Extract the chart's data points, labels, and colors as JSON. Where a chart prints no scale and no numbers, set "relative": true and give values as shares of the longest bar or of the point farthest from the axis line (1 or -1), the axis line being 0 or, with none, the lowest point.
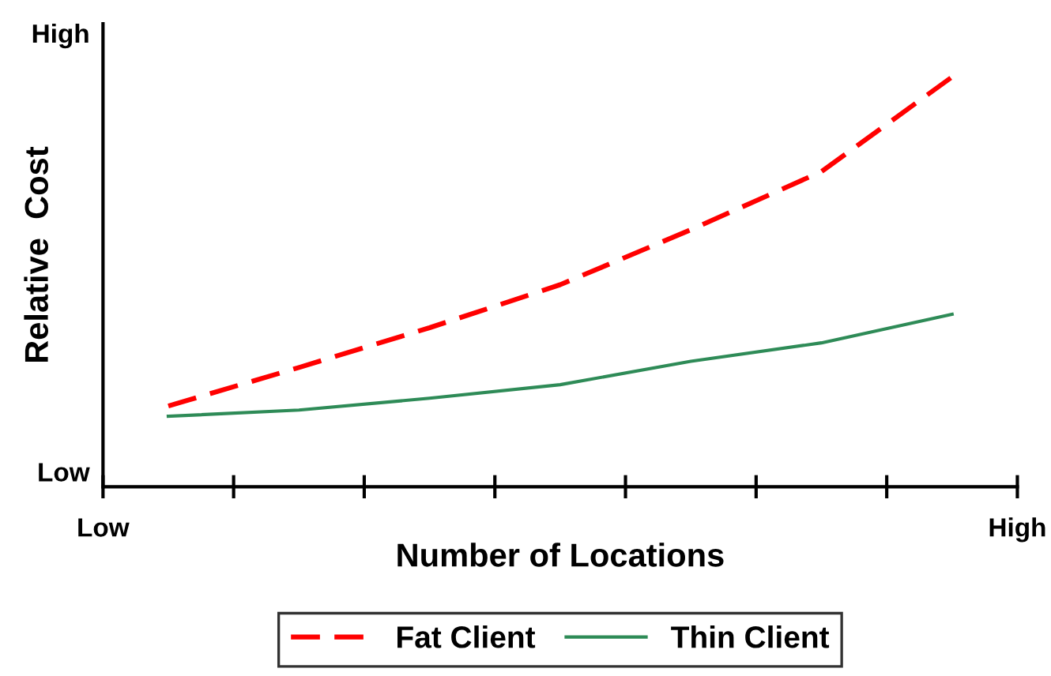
{
  "chart_data": {
    "type": "line",
    "relative": true,
    "xlabel": "Number of Locations",
    "ylabel": "Relative  Cost",
    "categories": [
      null,
      null,
      null,
      null,
      null,
      null,
      null
    ],
    "annotations": [
      "High",
      "Low",
      "Low",
      "High"
    ],
    "series": [
      {
        "name": "Fat Client",
        "color": "#ff0000",
        "line_style": "dashed",
        "values": [
          0.197,
          0.291,
          0.388,
          0.493,
          0.627,
          0.769,
          1
        ]
      },
      {
        "name": "Thin Client",
        "color": "#2e8b57",
        "line_style": "solid",
        "values": [
          0.172,
          0.187,
          0.216,
          0.249,
          0.306,
          0.351,
          0.421
        ]
      }
    ],
    "legend": "bottom",
    "grid": false,
    "marker": "none"
  }
}
